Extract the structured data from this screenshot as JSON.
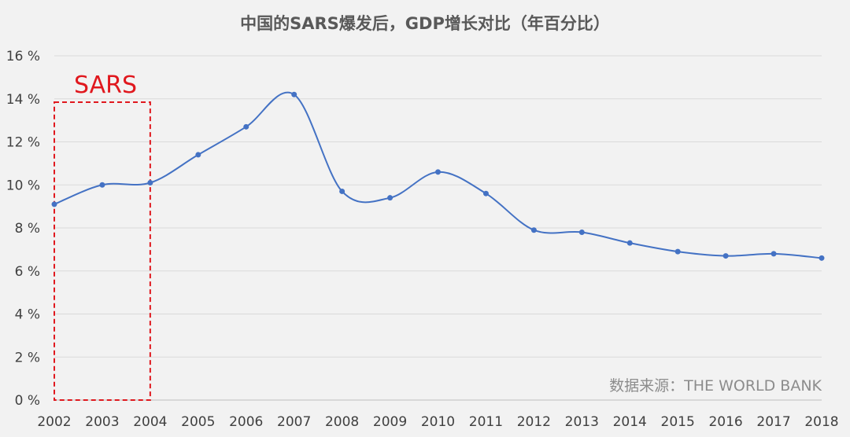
{
  "chart_data": {
    "type": "line",
    "title": "中国的SARS爆发后，GDP增长对比（年百分比）",
    "source": "数据来源：THE WORLD BANK",
    "annotation": {
      "label": "SARS",
      "x_start": 2002,
      "x_end": 2004,
      "color": "#e0181e"
    },
    "categories": [
      "2002",
      "2003",
      "2004",
      "2005",
      "2006",
      "2007",
      "2008",
      "2009",
      "2010",
      "2011",
      "2012",
      "2013",
      "2014",
      "2015",
      "2016",
      "2017",
      "2018"
    ],
    "series": [
      {
        "values": [
          9.1,
          10.0,
          10.1,
          11.4,
          12.7,
          14.2,
          9.7,
          9.4,
          10.6,
          9.6,
          7.9,
          7.8,
          7.3,
          6.9,
          6.7,
          6.8,
          6.6
        ],
        "color": "#4472c4"
      }
    ],
    "ylim": [
      0,
      16
    ],
    "yticks": [
      "0 %",
      "2 %",
      "4 %",
      "6 %",
      "8 %",
      "10 %",
      "12 %",
      "14 %",
      "16 %"
    ],
    "grid": true,
    "smooth": true
  }
}
